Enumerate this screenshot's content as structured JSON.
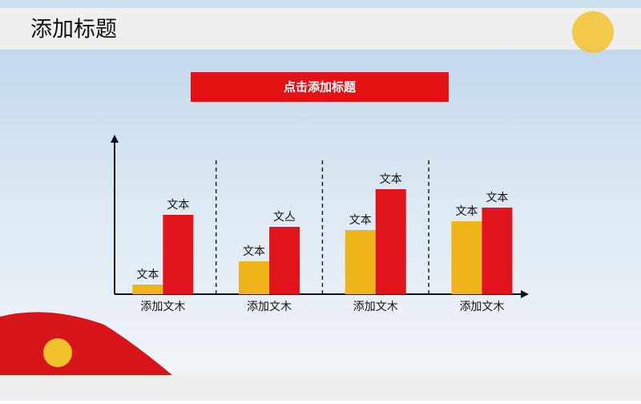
{
  "header": {
    "title": "添加标题"
  },
  "chart_data": {
    "type": "bar",
    "title": "点击添加标题",
    "categories": [
      "添加文木",
      "添加文木",
      "添加文木",
      "添加文木"
    ],
    "series": [
      {
        "color": "#efb417",
        "values": [
          12,
          41,
          80,
          91
        ],
        "labels": [
          "文本",
          "文本",
          "文本",
          "文本"
        ]
      },
      {
        "color": "#e1141b",
        "values": [
          99,
          84,
          131,
          108
        ],
        "labels": [
          "文本",
          "文亼",
          "文本",
          "文本"
        ]
      }
    ],
    "ylim": [
      0,
      195
    ]
  }
}
